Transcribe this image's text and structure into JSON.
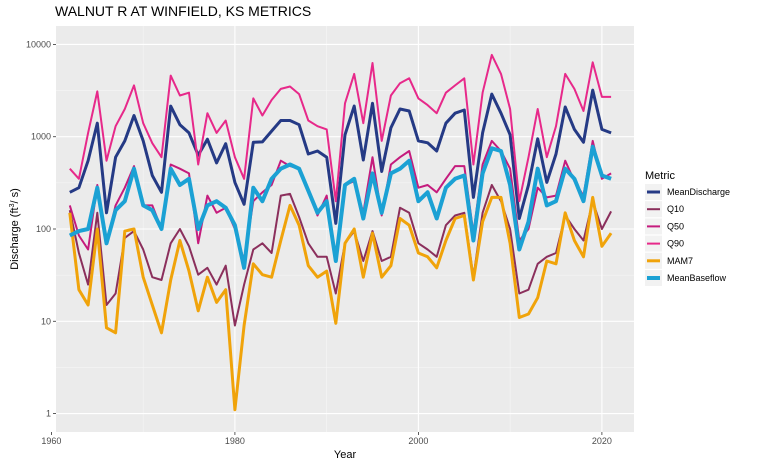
{
  "chart_data": {
    "type": "line",
    "title": "WALNUT R AT WINFIELD, KS  METRICS",
    "xlabel": "Year",
    "ylabel_main": "Discharge (ft",
    "ylabel_sup": "3",
    "ylabel_tail": "/ s)",
    "y_scale": "log10",
    "xlim": [
      1960.5,
      2023.5
    ],
    "ylim_log10": [
      -0.2,
      4.2
    ],
    "x_ticks": [
      1960,
      1980,
      2000,
      2020
    ],
    "x_tick_labels": [
      "1960",
      "1980",
      "2000",
      "2020"
    ],
    "y_ticks": [
      1,
      10,
      100,
      1000,
      10000
    ],
    "y_tick_labels": [
      "1",
      "10",
      "100",
      "1000",
      "10000"
    ],
    "grid": true,
    "panel_background": "#ebebeb",
    "legend": {
      "title": "Metric",
      "position": "right"
    },
    "x": [
      1962,
      1963,
      1964,
      1965,
      1966,
      1967,
      1968,
      1969,
      1970,
      1971,
      1972,
      1973,
      1974,
      1975,
      1976,
      1977,
      1978,
      1979,
      1980,
      1981,
      1982,
      1983,
      1984,
      1985,
      1986,
      1987,
      1988,
      1989,
      1990,
      1991,
      1992,
      1993,
      1994,
      1995,
      1996,
      1997,
      1998,
      1999,
      2000,
      2001,
      2002,
      2003,
      2004,
      2005,
      2006,
      2007,
      2008,
      2009,
      2010,
      2011,
      2012,
      2013,
      2014,
      2015,
      2016,
      2017,
      2018,
      2019,
      2020,
      2021
    ],
    "series": [
      {
        "name": "MeanDischarge",
        "color": "#253a85",
        "width": 3,
        "values": [
          250,
          280,
          550,
          1400,
          150,
          600,
          900,
          1700,
          900,
          380,
          250,
          2150,
          1350,
          1100,
          630,
          940,
          520,
          840,
          320,
          185,
          870,
          880,
          1150,
          1500,
          1500,
          1350,
          650,
          700,
          600,
          115,
          1050,
          2150,
          560,
          2300,
          420,
          1250,
          2000,
          1900,
          900,
          860,
          700,
          1400,
          1800,
          1950,
          220,
          1100,
          2900,
          1800,
          1050,
          130,
          300,
          950,
          320,
          650,
          2100,
          1200,
          870,
          3200,
          1200,
          1100
        ]
      },
      {
        "name": "Q10",
        "color": "#8b2f5c",
        "width": 2,
        "values": [
          160,
          55,
          25,
          150,
          15,
          20,
          80,
          95,
          60,
          30,
          28,
          70,
          100,
          65,
          32,
          38,
          25,
          40,
          9,
          25,
          60,
          70,
          55,
          230,
          240,
          135,
          70,
          50,
          50,
          20,
          70,
          95,
          45,
          95,
          45,
          50,
          170,
          150,
          70,
          60,
          50,
          110,
          140,
          150,
          30,
          150,
          300,
          200,
          100,
          20,
          22,
          42,
          50,
          55,
          140,
          100,
          75,
          200,
          100,
          155
        ]
      },
      {
        "name": "Q50",
        "color": "#c51b7d",
        "width": 2,
        "values": [
          180,
          85,
          60,
          300,
          70,
          180,
          280,
          480,
          180,
          180,
          100,
          500,
          450,
          400,
          70,
          230,
          150,
          170,
          100,
          45,
          200,
          250,
          300,
          550,
          480,
          450,
          270,
          140,
          230,
          45,
          300,
          330,
          150,
          600,
          140,
          500,
          600,
          700,
          280,
          300,
          250,
          350,
          480,
          480,
          90,
          500,
          900,
          700,
          450,
          75,
          100,
          280,
          220,
          230,
          550,
          330,
          230,
          900,
          350,
          400
        ]
      },
      {
        "name": "Q90",
        "color": "#e7298a",
        "width": 2,
        "values": [
          450,
          350,
          1100,
          3100,
          550,
          1300,
          2000,
          3600,
          1400,
          850,
          600,
          4600,
          2800,
          3000,
          500,
          1800,
          1100,
          1500,
          600,
          350,
          2600,
          1700,
          2500,
          3300,
          3500,
          2900,
          1500,
          1300,
          1200,
          200,
          2300,
          4800,
          1400,
          6300,
          900,
          2800,
          3800,
          4300,
          2600,
          2200,
          1800,
          3000,
          3600,
          4300,
          500,
          3000,
          7700,
          4800,
          2000,
          200,
          600,
          2000,
          600,
          1300,
          4800,
          3300,
          1900,
          6400,
          2700,
          2700
        ]
      },
      {
        "name": "MAM7",
        "color": "#f0a30a",
        "width": 3,
        "values": [
          150,
          22,
          15,
          100,
          8.5,
          7.5,
          95,
          100,
          30,
          15,
          7.5,
          28,
          75,
          35,
          13,
          30,
          16,
          22,
          1.1,
          9,
          42,
          32,
          30,
          75,
          180,
          110,
          40,
          30,
          35,
          9.5,
          70,
          100,
          30,
          90,
          30,
          40,
          130,
          110,
          55,
          50,
          38,
          75,
          130,
          140,
          28,
          120,
          220,
          220,
          70,
          11,
          12,
          18,
          45,
          42,
          150,
          75,
          50,
          220,
          65,
          90
        ]
      },
      {
        "name": "MeanBaseflow",
        "color": "#1ba1d4",
        "width": 4,
        "values": [
          85,
          95,
          100,
          280,
          70,
          160,
          200,
          450,
          180,
          160,
          100,
          450,
          300,
          350,
          100,
          180,
          200,
          170,
          110,
          38,
          280,
          200,
          350,
          450,
          500,
          450,
          260,
          150,
          200,
          45,
          300,
          350,
          130,
          400,
          150,
          400,
          450,
          550,
          200,
          250,
          130,
          280,
          350,
          380,
          75,
          400,
          750,
          700,
          300,
          60,
          120,
          450,
          180,
          200,
          450,
          350,
          200,
          780,
          380,
          350
        ]
      }
    ]
  }
}
